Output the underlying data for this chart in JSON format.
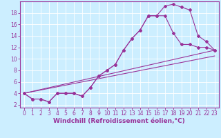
{
  "title": "",
  "xlabel": "Windchill (Refroidissement éolien,°C)",
  "ylabel": "",
  "bg_color": "#cceeff",
  "line_color": "#993399",
  "xlim": [
    -0.5,
    23.5
  ],
  "ylim": [
    1.5,
    20
  ],
  "xticks": [
    0,
    1,
    2,
    3,
    4,
    5,
    6,
    7,
    8,
    9,
    10,
    11,
    12,
    13,
    14,
    15,
    16,
    17,
    18,
    19,
    20,
    21,
    22,
    23
  ],
  "yticks": [
    2,
    4,
    6,
    8,
    10,
    12,
    14,
    16,
    18
  ],
  "line1_x": [
    0,
    1,
    2,
    3,
    4,
    5,
    6,
    7,
    8,
    9,
    10,
    11,
    12,
    13,
    14,
    15,
    16,
    17,
    18,
    19,
    20,
    21,
    22,
    23
  ],
  "line1_y": [
    4,
    3,
    3,
    2.5,
    4,
    4,
    4,
    3.5,
    5,
    7,
    8,
    9,
    11.5,
    13.5,
    15,
    17.5,
    17.5,
    19.2,
    19.5,
    19,
    18.5,
    14,
    13,
    11.5
  ],
  "line2_x": [
    0,
    1,
    2,
    3,
    4,
    5,
    6,
    7,
    8,
    9,
    10,
    11,
    12,
    13,
    14,
    15,
    16,
    17,
    18,
    19,
    20,
    21,
    22,
    23
  ],
  "line2_y": [
    4,
    3,
    3,
    2.5,
    4,
    4,
    4,
    3.5,
    5,
    7,
    8,
    9,
    11.5,
    13.5,
    15,
    17.5,
    17.5,
    17.5,
    14.5,
    12.5,
    12.5,
    12,
    12,
    11.5
  ],
  "line3_x": [
    0,
    23
  ],
  "line3_y": [
    4,
    11.5
  ],
  "line4_x": [
    0,
    23
  ],
  "line4_y": [
    4,
    10.5
  ],
  "tick_fontsize": 5.5,
  "xlabel_fontsize": 6.5
}
